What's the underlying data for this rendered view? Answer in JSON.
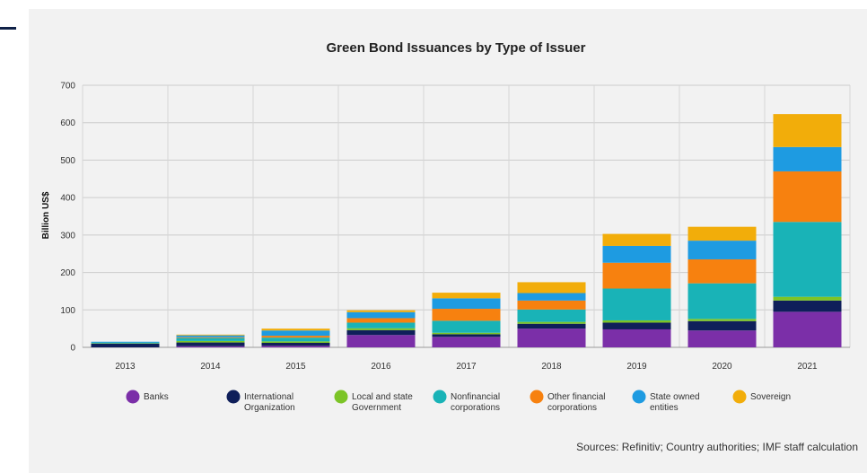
{
  "chart_data": {
    "type": "bar",
    "stacked": true,
    "title": "Green Bond Issuances by Type of Issuer",
    "xlabel": "",
    "ylabel": "Billion US$",
    "ylim": [
      0,
      700
    ],
    "yticks": [
      0,
      100,
      200,
      300,
      400,
      500,
      600,
      700
    ],
    "grid": true,
    "legend_position": "bottom",
    "categories": [
      "2013",
      "2014",
      "2015",
      "2016",
      "2017",
      "2018",
      "2019",
      "2020",
      "2021"
    ],
    "series": [
      {
        "name": "Banks",
        "color": "#7b2fa8",
        "values": [
          0,
          3,
          4,
          33,
          28,
          50,
          48,
          45,
          95
        ]
      },
      {
        "name": "International Organization",
        "color": "#0f1f5a",
        "values": [
          10,
          10,
          8,
          13,
          7,
          13,
          18,
          25,
          30
        ]
      },
      {
        "name": "Local and state Government",
        "color": "#7cc427",
        "values": [
          1,
          4,
          4,
          5,
          4,
          5,
          6,
          6,
          10
        ]
      },
      {
        "name": "Nonfinancial corporations",
        "color": "#19b3b7",
        "values": [
          2,
          8,
          10,
          15,
          32,
          33,
          85,
          95,
          200
        ]
      },
      {
        "name": "Other financial corporations",
        "color": "#f7810f",
        "values": [
          0,
          2,
          5,
          12,
          32,
          24,
          69,
          64,
          135
        ]
      },
      {
        "name": "State owned entities",
        "color": "#1e9be1",
        "values": [
          2,
          5,
          14,
          16,
          28,
          20,
          45,
          50,
          65
        ]
      },
      {
        "name": "Sovereign",
        "color": "#f2ad0a",
        "values": [
          0,
          2,
          5,
          5,
          15,
          29,
          32,
          37,
          88
        ]
      }
    ],
    "legend_labels": [
      [
        "Banks"
      ],
      [
        "International",
        "Organization"
      ],
      [
        "Local and state",
        "Government"
      ],
      [
        "Nonfinancial",
        "corporations"
      ],
      [
        "Other financial",
        "corporations"
      ],
      [
        "State owned",
        "entities"
      ],
      [
        "Sovereign"
      ]
    ]
  },
  "source_note": "Sources: Refinitiv; Country authorities; IMF staff calculation"
}
